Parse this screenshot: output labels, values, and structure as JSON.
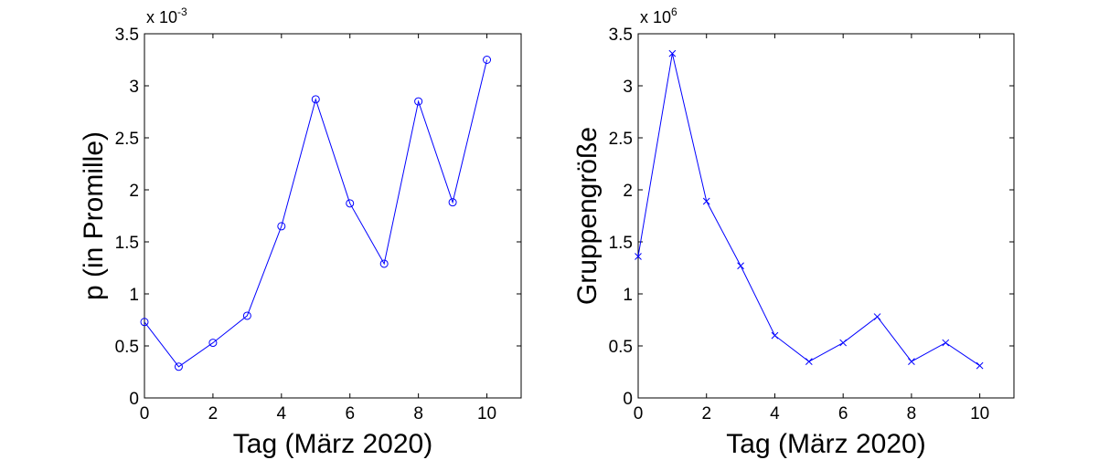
{
  "chart_data": [
    {
      "type": "line",
      "xlabel": "Tag (März 2020)",
      "ylabel": "p (in Promille)",
      "y_exponent": {
        "base": "x 10",
        "power": "-3"
      },
      "xlim": [
        0,
        11
      ],
      "ylim": [
        0,
        3.5
      ],
      "x_ticks": [
        "0",
        "2",
        "4",
        "6",
        "8",
        "10"
      ],
      "y_ticks": [
        "0",
        "0.5",
        "1",
        "1.5",
        "2",
        "2.5",
        "3",
        "3.5"
      ],
      "marker": "circle",
      "color": "#0000ff",
      "grid": false,
      "x": [
        0,
        1,
        2,
        3,
        4,
        5,
        6,
        7,
        8,
        9,
        10
      ],
      "y": [
        0.73,
        0.3,
        0.53,
        0.79,
        1.65,
        2.87,
        1.87,
        1.29,
        2.85,
        1.88,
        3.25
      ]
    },
    {
      "type": "line",
      "xlabel": "Tag (März 2020)",
      "ylabel": "Gruppengröße",
      "y_exponent": {
        "base": "x 10",
        "power": "6"
      },
      "xlim": [
        0,
        11
      ],
      "ylim": [
        0,
        3.5
      ],
      "x_ticks": [
        "0",
        "2",
        "4",
        "6",
        "8",
        "10"
      ],
      "y_ticks": [
        "0",
        "0.5",
        "1",
        "1.5",
        "2",
        "2.5",
        "3",
        "3.5"
      ],
      "marker": "x",
      "color": "#0000ff",
      "grid": false,
      "x": [
        0,
        1,
        2,
        3,
        4,
        5,
        6,
        7,
        8,
        9,
        10
      ],
      "y": [
        1.36,
        3.31,
        1.89,
        1.27,
        0.6,
        0.35,
        0.53,
        0.78,
        0.35,
        0.53,
        0.31
      ]
    }
  ]
}
